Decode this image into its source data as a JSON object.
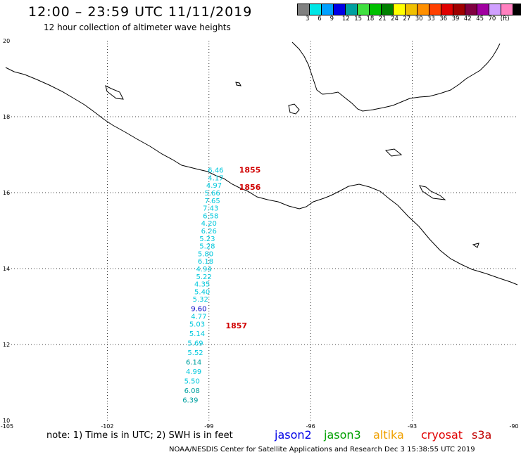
{
  "header": {
    "title": "12:00 – 23:59 UTC 11/11/2019",
    "subtitle": "12 hour collection of altimeter wave heights"
  },
  "colorbar": {
    "colors": [
      "#808080",
      "#00e6e6",
      "#00a0ff",
      "#0000e6",
      "#00a0a0",
      "#40e040",
      "#00c000",
      "#008000",
      "#ffff00",
      "#f0c000",
      "#ff9000",
      "#ff4000",
      "#e00000",
      "#a00000",
      "#800040",
      "#a000a0",
      "#d0a0ff",
      "#ff80c0",
      "#000000"
    ],
    "labels": [
      "3",
      "6",
      "9",
      "12",
      "15",
      "18",
      "21",
      "24",
      "27",
      "30",
      "33",
      "36",
      "39",
      "42",
      "45",
      "70",
      "(ft)"
    ]
  },
  "axes": {
    "lon_labels": [
      "-105",
      "-102",
      "-99",
      "-96",
      "-93",
      "-90"
    ],
    "lat_labels": [
      "20",
      "18",
      "16",
      "14",
      "12",
      "10"
    ]
  },
  "track_times": [
    {
      "text": "1855",
      "lon": -98.4,
      "lat": 16.6
    },
    {
      "text": "1856",
      "lon": -98.4,
      "lat": 16.15
    },
    {
      "text": "1857",
      "lon": -98.8,
      "lat": 12.5
    }
  ],
  "wave_heights": [
    {
      "value": "6.46",
      "lon": -98.8,
      "lat": 16.6,
      "color": "#00c8dc"
    },
    {
      "value": "4.17",
      "lon": -98.8,
      "lat": 16.4,
      "color": "#00c8dc"
    },
    {
      "value": "4.97",
      "lon": -98.85,
      "lat": 16.2,
      "color": "#00c8dc"
    },
    {
      "value": "5.66",
      "lon": -98.9,
      "lat": 16.0,
      "color": "#00c8dc"
    },
    {
      "value": "7.65",
      "lon": -98.9,
      "lat": 15.8,
      "color": "#00c8dc"
    },
    {
      "value": "7.43",
      "lon": -98.95,
      "lat": 15.6,
      "color": "#00c8dc"
    },
    {
      "value": "6.58",
      "lon": -98.95,
      "lat": 15.4,
      "color": "#00c8dc"
    },
    {
      "value": "4.20",
      "lon": -99.0,
      "lat": 15.2,
      "color": "#00c8dc"
    },
    {
      "value": "6.26",
      "lon": -99.0,
      "lat": 15.0,
      "color": "#00c8dc"
    },
    {
      "value": "5.23",
      "lon": -99.05,
      "lat": 14.8,
      "color": "#00c8dc"
    },
    {
      "value": "5.28",
      "lon": -99.05,
      "lat": 14.6,
      "color": "#00c8dc"
    },
    {
      "value": "5.80",
      "lon": -99.1,
      "lat": 14.4,
      "color": "#00c8dc"
    },
    {
      "value": "6.18",
      "lon": -99.1,
      "lat": 14.2,
      "color": "#00c8dc"
    },
    {
      "value": "4.94",
      "lon": -99.15,
      "lat": 14.0,
      "color": "#00c8dc"
    },
    {
      "value": "5.22",
      "lon": -99.15,
      "lat": 13.8,
      "color": "#00c8dc"
    },
    {
      "value": "4.35",
      "lon": -99.2,
      "lat": 13.6,
      "color": "#00c8dc"
    },
    {
      "value": "5.40",
      "lon": -99.2,
      "lat": 13.4,
      "color": "#00c8dc"
    },
    {
      "value": "5.32",
      "lon": -99.25,
      "lat": 13.2,
      "color": "#00c8dc"
    },
    {
      "value": "9.60",
      "lon": -99.3,
      "lat": 12.95,
      "color": "#0000c8"
    },
    {
      "value": "4.77",
      "lon": -99.3,
      "lat": 12.75,
      "color": "#00c8dc"
    },
    {
      "value": "5.03",
      "lon": -99.35,
      "lat": 12.55,
      "color": "#00c8dc"
    },
    {
      "value": "5.14",
      "lon": -99.35,
      "lat": 12.3,
      "color": "#00c8dc"
    },
    {
      "value": "5.69",
      "lon": -99.4,
      "lat": 12.05,
      "color": "#00c8dc"
    },
    {
      "value": "5.52",
      "lon": -99.4,
      "lat": 11.8,
      "color": "#00c8dc"
    },
    {
      "value": "6.14",
      "lon": -99.45,
      "lat": 11.55,
      "color": "#00a0a0"
    },
    {
      "value": "4.99",
      "lon": -99.45,
      "lat": 11.3,
      "color": "#00c8dc"
    },
    {
      "value": "5.50",
      "lon": -99.5,
      "lat": 11.05,
      "color": "#00c8dc"
    },
    {
      "value": "6.08",
      "lon": -99.5,
      "lat": 10.8,
      "color": "#00a0a0"
    },
    {
      "value": "6.39",
      "lon": -99.55,
      "lat": 10.55,
      "color": "#00a0a0"
    }
  ],
  "footer": {
    "note": "note: 1) Time is in UTC; 2) SWH is in feet",
    "satellites": [
      {
        "name": "jason2",
        "color": "#0000e6"
      },
      {
        "name": "jason3",
        "color": "#00a000"
      },
      {
        "name": "altika",
        "color": "#f0a000"
      },
      {
        "name": "cryosat",
        "color": "#e00000"
      },
      {
        "name": "s3a",
        "color": "#c00000"
      }
    ],
    "credit": "NOAA/NESDIS Center for Satellite Applications and Research     Dec  3 15:38:55 UTC 2019"
  }
}
